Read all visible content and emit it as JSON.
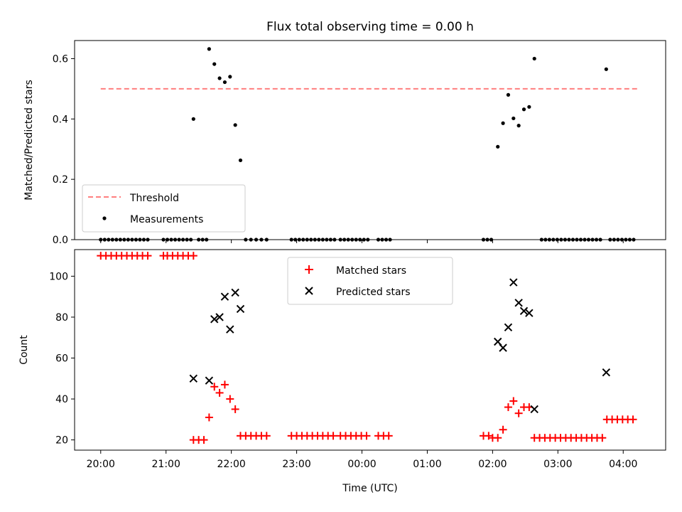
{
  "chart_data": [
    {
      "type": "scatter",
      "title": "Flux total observing time = 0.00 h",
      "ylabel": "Matched/Predicted stars",
      "ylim": [
        0,
        0.66
      ],
      "y_ticks": [
        0.0,
        0.2,
        0.4,
        0.6
      ],
      "y_tick_labels": [
        "0.0",
        "0.2",
        "0.4",
        "0.6"
      ],
      "x_unit": "hours since 20:00 UTC",
      "xlim": [
        -0.4,
        8.65
      ],
      "legend_position": "lower-left",
      "threshold": {
        "name": "Threshold",
        "y": 0.5,
        "x_range": [
          0.0,
          8.25
        ],
        "color": "#ff7f7f"
      },
      "series": [
        {
          "name": "Measurements",
          "color": "#000000",
          "points": [
            [
              0.0,
              0
            ],
            [
              0.06,
              0
            ],
            [
              0.12,
              0
            ],
            [
              0.18,
              0
            ],
            [
              0.24,
              0
            ],
            [
              0.3,
              0
            ],
            [
              0.36,
              0
            ],
            [
              0.42,
              0
            ],
            [
              0.48,
              0
            ],
            [
              0.54,
              0
            ],
            [
              0.6,
              0
            ],
            [
              0.66,
              0
            ],
            [
              0.72,
              0
            ],
            [
              0.96,
              0
            ],
            [
              1.02,
              0
            ],
            [
              1.08,
              0
            ],
            [
              1.14,
              0
            ],
            [
              1.2,
              0
            ],
            [
              1.26,
              0
            ],
            [
              1.32,
              0
            ],
            [
              1.38,
              0
            ],
            [
              1.5,
              0
            ],
            [
              1.56,
              0
            ],
            [
              1.62,
              0
            ],
            [
              1.42,
              0.4
            ],
            [
              1.66,
              0.632
            ],
            [
              1.74,
              0.582
            ],
            [
              1.82,
              0.535
            ],
            [
              1.9,
              0.522
            ],
            [
              1.98,
              0.54
            ],
            [
              2.06,
              0.38
            ],
            [
              2.14,
              0.263
            ],
            [
              2.22,
              0
            ],
            [
              2.3,
              0
            ],
            [
              2.38,
              0
            ],
            [
              2.46,
              0
            ],
            [
              2.54,
              0
            ],
            [
              2.92,
              0
            ],
            [
              2.98,
              0
            ],
            [
              3.04,
              0
            ],
            [
              3.1,
              0
            ],
            [
              3.16,
              0
            ],
            [
              3.22,
              0
            ],
            [
              3.28,
              0
            ],
            [
              3.34,
              0
            ],
            [
              3.4,
              0
            ],
            [
              3.46,
              0
            ],
            [
              3.52,
              0
            ],
            [
              3.58,
              0
            ],
            [
              3.67,
              0
            ],
            [
              3.73,
              0
            ],
            [
              3.79,
              0
            ],
            [
              3.85,
              0
            ],
            [
              3.91,
              0
            ],
            [
              3.97,
              0
            ],
            [
              4.03,
              0
            ],
            [
              4.09,
              0
            ],
            [
              4.25,
              0
            ],
            [
              4.31,
              0
            ],
            [
              4.37,
              0
            ],
            [
              4.43,
              0
            ],
            [
              5.86,
              0
            ],
            [
              5.92,
              0
            ],
            [
              5.98,
              0
            ],
            [
              6.08,
              0.308
            ],
            [
              6.16,
              0.386
            ],
            [
              6.24,
              0.48
            ],
            [
              6.32,
              0.402
            ],
            [
              6.4,
              0.378
            ],
            [
              6.48,
              0.432
            ],
            [
              6.56,
              0.44
            ],
            [
              6.64,
              0.6
            ],
            [
              6.75,
              0
            ],
            [
              6.81,
              0
            ],
            [
              6.87,
              0
            ],
            [
              6.93,
              0
            ],
            [
              6.99,
              0
            ],
            [
              7.05,
              0
            ],
            [
              7.11,
              0
            ],
            [
              7.17,
              0
            ],
            [
              7.23,
              0
            ],
            [
              7.29,
              0
            ],
            [
              7.35,
              0
            ],
            [
              7.41,
              0
            ],
            [
              7.47,
              0
            ],
            [
              7.53,
              0
            ],
            [
              7.59,
              0
            ],
            [
              7.65,
              0
            ],
            [
              7.74,
              0.565
            ],
            [
              7.8,
              0
            ],
            [
              7.86,
              0
            ],
            [
              7.92,
              0
            ],
            [
              7.98,
              0
            ],
            [
              8.04,
              0
            ],
            [
              8.1,
              0
            ],
            [
              8.16,
              0
            ]
          ]
        }
      ]
    },
    {
      "type": "scatter",
      "title": "",
      "xlabel": "Time (UTC)",
      "ylabel": "Count",
      "ylim": [
        15,
        113
      ],
      "y_ticks": [
        20,
        40,
        60,
        80,
        100
      ],
      "y_tick_labels": [
        "20",
        "40",
        "60",
        "80",
        "100"
      ],
      "x_unit": "hours since 20:00 UTC",
      "xlim": [
        -0.4,
        8.65
      ],
      "x_ticks": [
        0,
        1,
        2,
        3,
        4,
        5,
        6,
        7,
        8
      ],
      "x_tick_labels": [
        "20:00",
        "21:00",
        "22:00",
        "23:00",
        "00:00",
        "01:00",
        "02:00",
        "03:00",
        "04:00"
      ],
      "legend_position": "upper-center",
      "series": [
        {
          "name": "Matched stars",
          "marker": "plus",
          "color": "#ff0000",
          "points": [
            [
              0.0,
              110
            ],
            [
              0.08,
              110
            ],
            [
              0.16,
              110
            ],
            [
              0.24,
              110
            ],
            [
              0.32,
              110
            ],
            [
              0.4,
              110
            ],
            [
              0.48,
              110
            ],
            [
              0.56,
              110
            ],
            [
              0.64,
              110
            ],
            [
              0.72,
              110
            ],
            [
              0.96,
              110
            ],
            [
              1.02,
              110
            ],
            [
              1.1,
              110
            ],
            [
              1.18,
              110
            ],
            [
              1.26,
              110
            ],
            [
              1.34,
              110
            ],
            [
              1.42,
              110
            ],
            [
              1.42,
              20
            ],
            [
              1.5,
              20
            ],
            [
              1.58,
              20
            ],
            [
              1.66,
              31
            ],
            [
              1.74,
              46
            ],
            [
              1.82,
              43
            ],
            [
              1.9,
              47
            ],
            [
              1.98,
              40
            ],
            [
              2.06,
              35
            ],
            [
              2.14,
              22
            ],
            [
              2.22,
              22
            ],
            [
              2.3,
              22
            ],
            [
              2.38,
              22
            ],
            [
              2.46,
              22
            ],
            [
              2.54,
              22
            ],
            [
              2.92,
              22
            ],
            [
              3.0,
              22
            ],
            [
              3.08,
              22
            ],
            [
              3.16,
              22
            ],
            [
              3.24,
              22
            ],
            [
              3.32,
              22
            ],
            [
              3.4,
              22
            ],
            [
              3.48,
              22
            ],
            [
              3.56,
              22
            ],
            [
              3.67,
              22
            ],
            [
              3.75,
              22
            ],
            [
              3.83,
              22
            ],
            [
              3.91,
              22
            ],
            [
              3.99,
              22
            ],
            [
              4.07,
              22
            ],
            [
              4.25,
              22
            ],
            [
              4.33,
              22
            ],
            [
              4.41,
              22
            ],
            [
              5.86,
              22
            ],
            [
              5.94,
              22
            ],
            [
              6.0,
              21
            ],
            [
              6.08,
              21
            ],
            [
              6.16,
              25
            ],
            [
              6.24,
              36
            ],
            [
              6.32,
              39
            ],
            [
              6.4,
              33
            ],
            [
              6.48,
              36
            ],
            [
              6.56,
              36
            ],
            [
              6.64,
              21
            ],
            [
              6.72,
              21
            ],
            [
              6.8,
              21
            ],
            [
              6.88,
              21
            ],
            [
              6.96,
              21
            ],
            [
              7.04,
              21
            ],
            [
              7.12,
              21
            ],
            [
              7.2,
              21
            ],
            [
              7.28,
              21
            ],
            [
              7.36,
              21
            ],
            [
              7.44,
              21
            ],
            [
              7.52,
              21
            ],
            [
              7.6,
              21
            ],
            [
              7.68,
              21
            ],
            [
              7.75,
              30
            ],
            [
              7.83,
              30
            ],
            [
              7.91,
              30
            ],
            [
              7.99,
              30
            ],
            [
              8.07,
              30
            ],
            [
              8.15,
              30
            ]
          ]
        },
        {
          "name": "Predicted stars",
          "marker": "x",
          "color": "#000000",
          "points": [
            [
              1.42,
              50
            ],
            [
              1.66,
              49
            ],
            [
              1.74,
              79
            ],
            [
              1.82,
              80
            ],
            [
              1.9,
              90
            ],
            [
              1.98,
              74
            ],
            [
              2.06,
              92
            ],
            [
              2.14,
              84
            ],
            [
              6.08,
              68
            ],
            [
              6.16,
              65
            ],
            [
              6.24,
              75
            ],
            [
              6.32,
              97
            ],
            [
              6.4,
              87
            ],
            [
              6.48,
              83
            ],
            [
              6.56,
              82
            ],
            [
              6.64,
              35
            ],
            [
              7.74,
              53
            ]
          ]
        }
      ]
    }
  ]
}
